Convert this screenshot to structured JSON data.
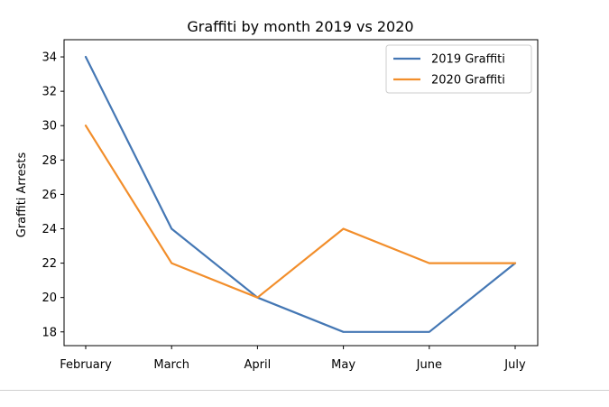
{
  "chart_data": {
    "type": "line",
    "title": "Graffiti by month 2019 vs 2020",
    "xlabel": "",
    "ylabel": "Graffiti Arrests",
    "categories": [
      "February",
      "March",
      "April",
      "May",
      "June",
      "July"
    ],
    "series": [
      {
        "name": "2019 Graffiti",
        "values": [
          34,
          24,
          20,
          18,
          18,
          22
        ],
        "color": "#4477b4"
      },
      {
        "name": "2020 Graffiti",
        "values": [
          30,
          22,
          20,
          24,
          22,
          22
        ],
        "color": "#f28e2b"
      }
    ],
    "ylim": [
      17.2,
      35.0
    ],
    "yticks": [
      18,
      20,
      22,
      24,
      26,
      28,
      30,
      32,
      34
    ],
    "grid": false,
    "legend": "top-right"
  }
}
